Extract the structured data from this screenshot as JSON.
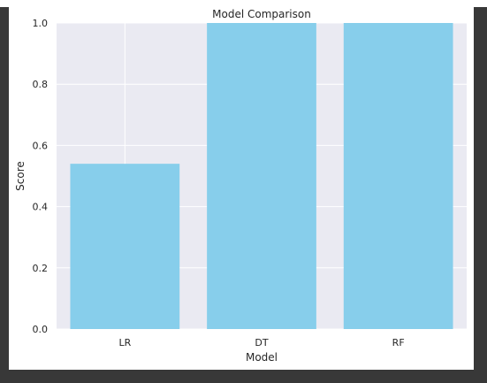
{
  "chart_data": {
    "type": "bar",
    "title": "Model Comparison",
    "xlabel": "Model",
    "ylabel": "Score",
    "categories": [
      "LR",
      "DT",
      "RF"
    ],
    "values": [
      0.54,
      1.0,
      1.0
    ],
    "ylim": [
      0,
      1
    ],
    "yticks": [
      "0.0",
      "0.2",
      "0.4",
      "0.6",
      "0.8",
      "1.0"
    ],
    "grid": true,
    "bar_color": "#87CEEB",
    "plot_background": "#EAEAF2",
    "grid_color": "#FFFFFF"
  }
}
